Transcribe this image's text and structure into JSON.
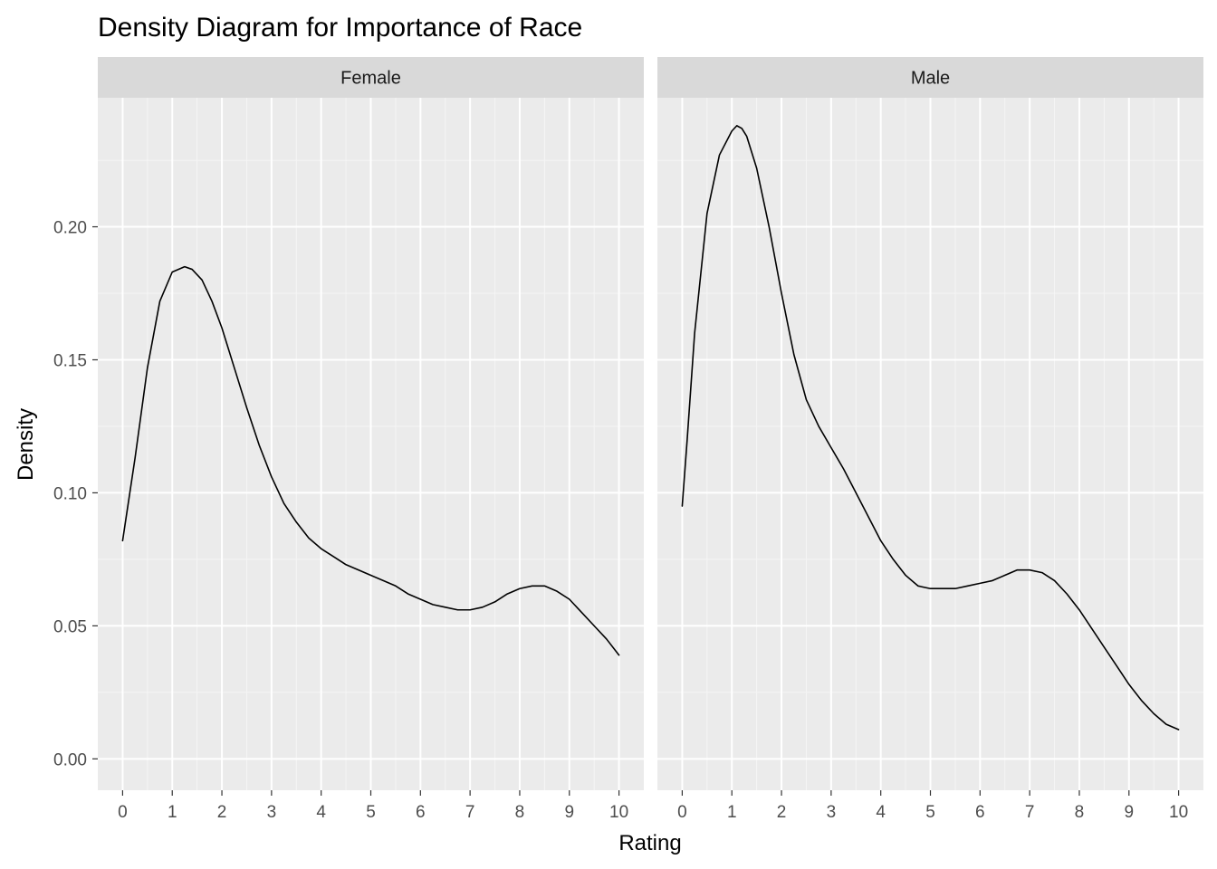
{
  "chart_data": {
    "type": "line",
    "title": "Density Diagram for Importance of Race",
    "xlabel": "Rating",
    "ylabel": "Density",
    "xlim": [
      -0.5,
      10.5
    ],
    "ylim": [
      -0.0118,
      0.2485
    ],
    "x_ticks": [
      0,
      1,
      2,
      3,
      4,
      5,
      6,
      7,
      8,
      9,
      10
    ],
    "x_tick_labels": [
      "0",
      "1",
      "2",
      "3",
      "4",
      "5",
      "6",
      "7",
      "8",
      "9",
      "10"
    ],
    "y_ticks": [
      0.0,
      0.05,
      0.1,
      0.15,
      0.2
    ],
    "y_tick_labels": [
      "0.00",
      "0.05",
      "0.10",
      "0.15",
      "0.20"
    ],
    "grid": true,
    "facets": [
      {
        "label": "Female",
        "x": [
          0,
          0.25,
          0.5,
          0.75,
          1.0,
          1.25,
          1.4,
          1.6,
          1.8,
          2.0,
          2.25,
          2.5,
          2.75,
          3.0,
          3.25,
          3.5,
          3.75,
          4.0,
          4.25,
          4.5,
          4.75,
          5.0,
          5.25,
          5.5,
          5.75,
          6.0,
          6.25,
          6.5,
          6.75,
          7.0,
          7.25,
          7.5,
          7.75,
          8.0,
          8.25,
          8.5,
          8.75,
          9.0,
          9.25,
          9.5,
          9.75,
          10.0
        ],
        "y": [
          0.082,
          0.113,
          0.147,
          0.172,
          0.183,
          0.185,
          0.184,
          0.18,
          0.172,
          0.162,
          0.147,
          0.132,
          0.118,
          0.106,
          0.096,
          0.089,
          0.083,
          0.079,
          0.076,
          0.073,
          0.071,
          0.069,
          0.067,
          0.065,
          0.062,
          0.06,
          0.058,
          0.057,
          0.056,
          0.056,
          0.057,
          0.059,
          0.062,
          0.064,
          0.065,
          0.065,
          0.063,
          0.06,
          0.055,
          0.05,
          0.045,
          0.039
        ]
      },
      {
        "label": "Male",
        "x": [
          0,
          0.1,
          0.25,
          0.5,
          0.75,
          1.0,
          1.1,
          1.2,
          1.3,
          1.5,
          1.75,
          2.0,
          2.25,
          2.5,
          2.75,
          3.0,
          3.25,
          3.5,
          3.75,
          4.0,
          4.25,
          4.5,
          4.75,
          5.0,
          5.25,
          5.5,
          5.75,
          6.0,
          6.25,
          6.5,
          6.75,
          7.0,
          7.25,
          7.5,
          7.75,
          8.0,
          8.25,
          8.5,
          8.75,
          9.0,
          9.25,
          9.5,
          9.75,
          10.0
        ],
        "y": [
          0.095,
          0.12,
          0.16,
          0.205,
          0.227,
          0.236,
          0.238,
          0.237,
          0.234,
          0.222,
          0.2,
          0.175,
          0.152,
          0.135,
          0.125,
          0.117,
          0.109,
          0.1,
          0.091,
          0.082,
          0.075,
          0.069,
          0.065,
          0.064,
          0.064,
          0.064,
          0.065,
          0.066,
          0.067,
          0.069,
          0.071,
          0.071,
          0.07,
          0.067,
          0.062,
          0.056,
          0.049,
          0.042,
          0.035,
          0.028,
          0.022,
          0.017,
          0.013,
          0.011
        ]
      }
    ]
  }
}
